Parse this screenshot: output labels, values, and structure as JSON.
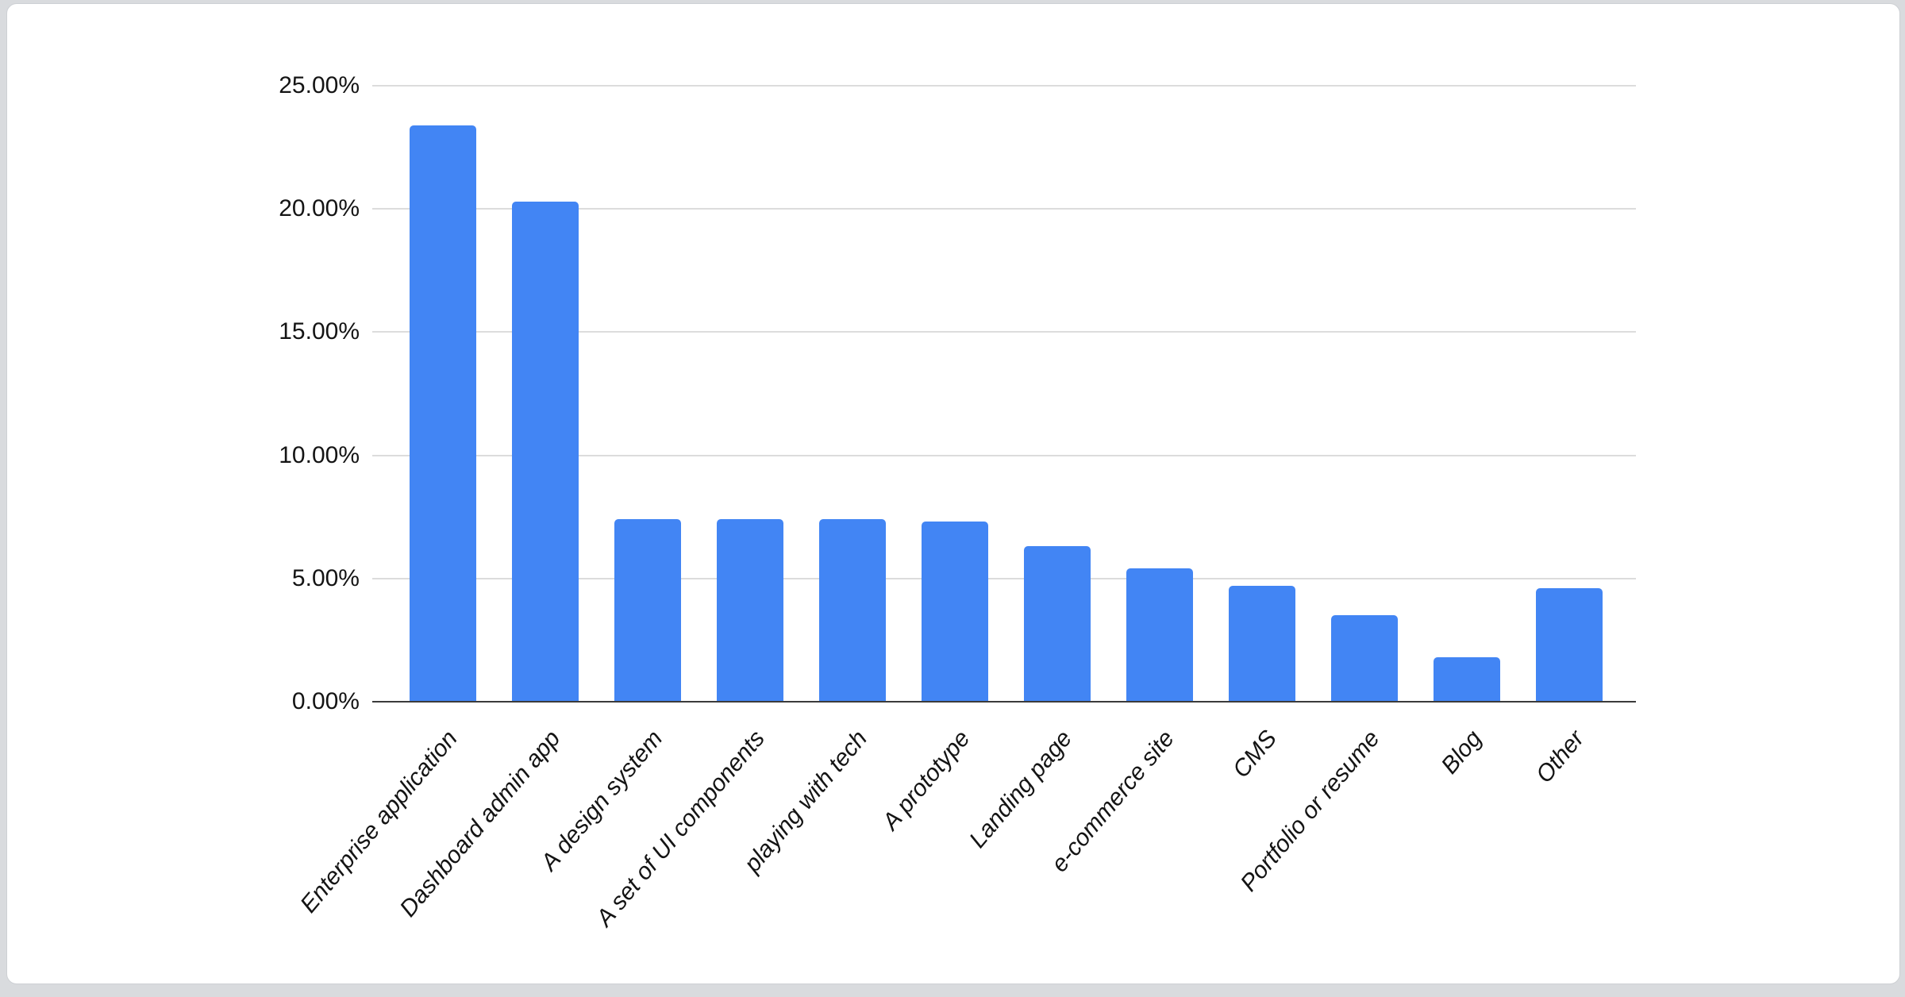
{
  "page": {
    "background_color": "#d9dbde",
    "card_background_color": "#ffffff",
    "card_border_color": "#cdd0d4"
  },
  "chart_data": {
    "type": "bar",
    "title": "",
    "xlabel": "",
    "ylabel": "",
    "categories": [
      "Enterprise application",
      "Dashboard admin app",
      "A design system",
      "A set of UI components",
      "playing with tech",
      "A prototype",
      "Landing page",
      "e-commerce site",
      "CMS",
      "Portfolio or resume",
      "Blog",
      "Other"
    ],
    "values": [
      23.4,
      20.3,
      7.4,
      7.4,
      7.4,
      7.3,
      6.3,
      5.4,
      4.7,
      3.5,
      1.8,
      4.6
    ],
    "value_unit": "percent",
    "ylim": [
      0,
      25
    ],
    "y_ticks": [
      {
        "value": 0,
        "label": "0.00%"
      },
      {
        "value": 5,
        "label": "5.00%"
      },
      {
        "value": 10,
        "label": "10.00%"
      },
      {
        "value": 15,
        "label": "15.00%"
      },
      {
        "value": 20,
        "label": "20.00%"
      },
      {
        "value": 25,
        "label": "25.00%"
      }
    ],
    "grid": "horizontal",
    "legend": "none",
    "bar_color": "#4285f4",
    "gridline_color": "#dcdcdc",
    "axis_line_color": "#3b3b3b",
    "tick_label_color": "#141414",
    "x_label_style": "italic-rotated"
  }
}
